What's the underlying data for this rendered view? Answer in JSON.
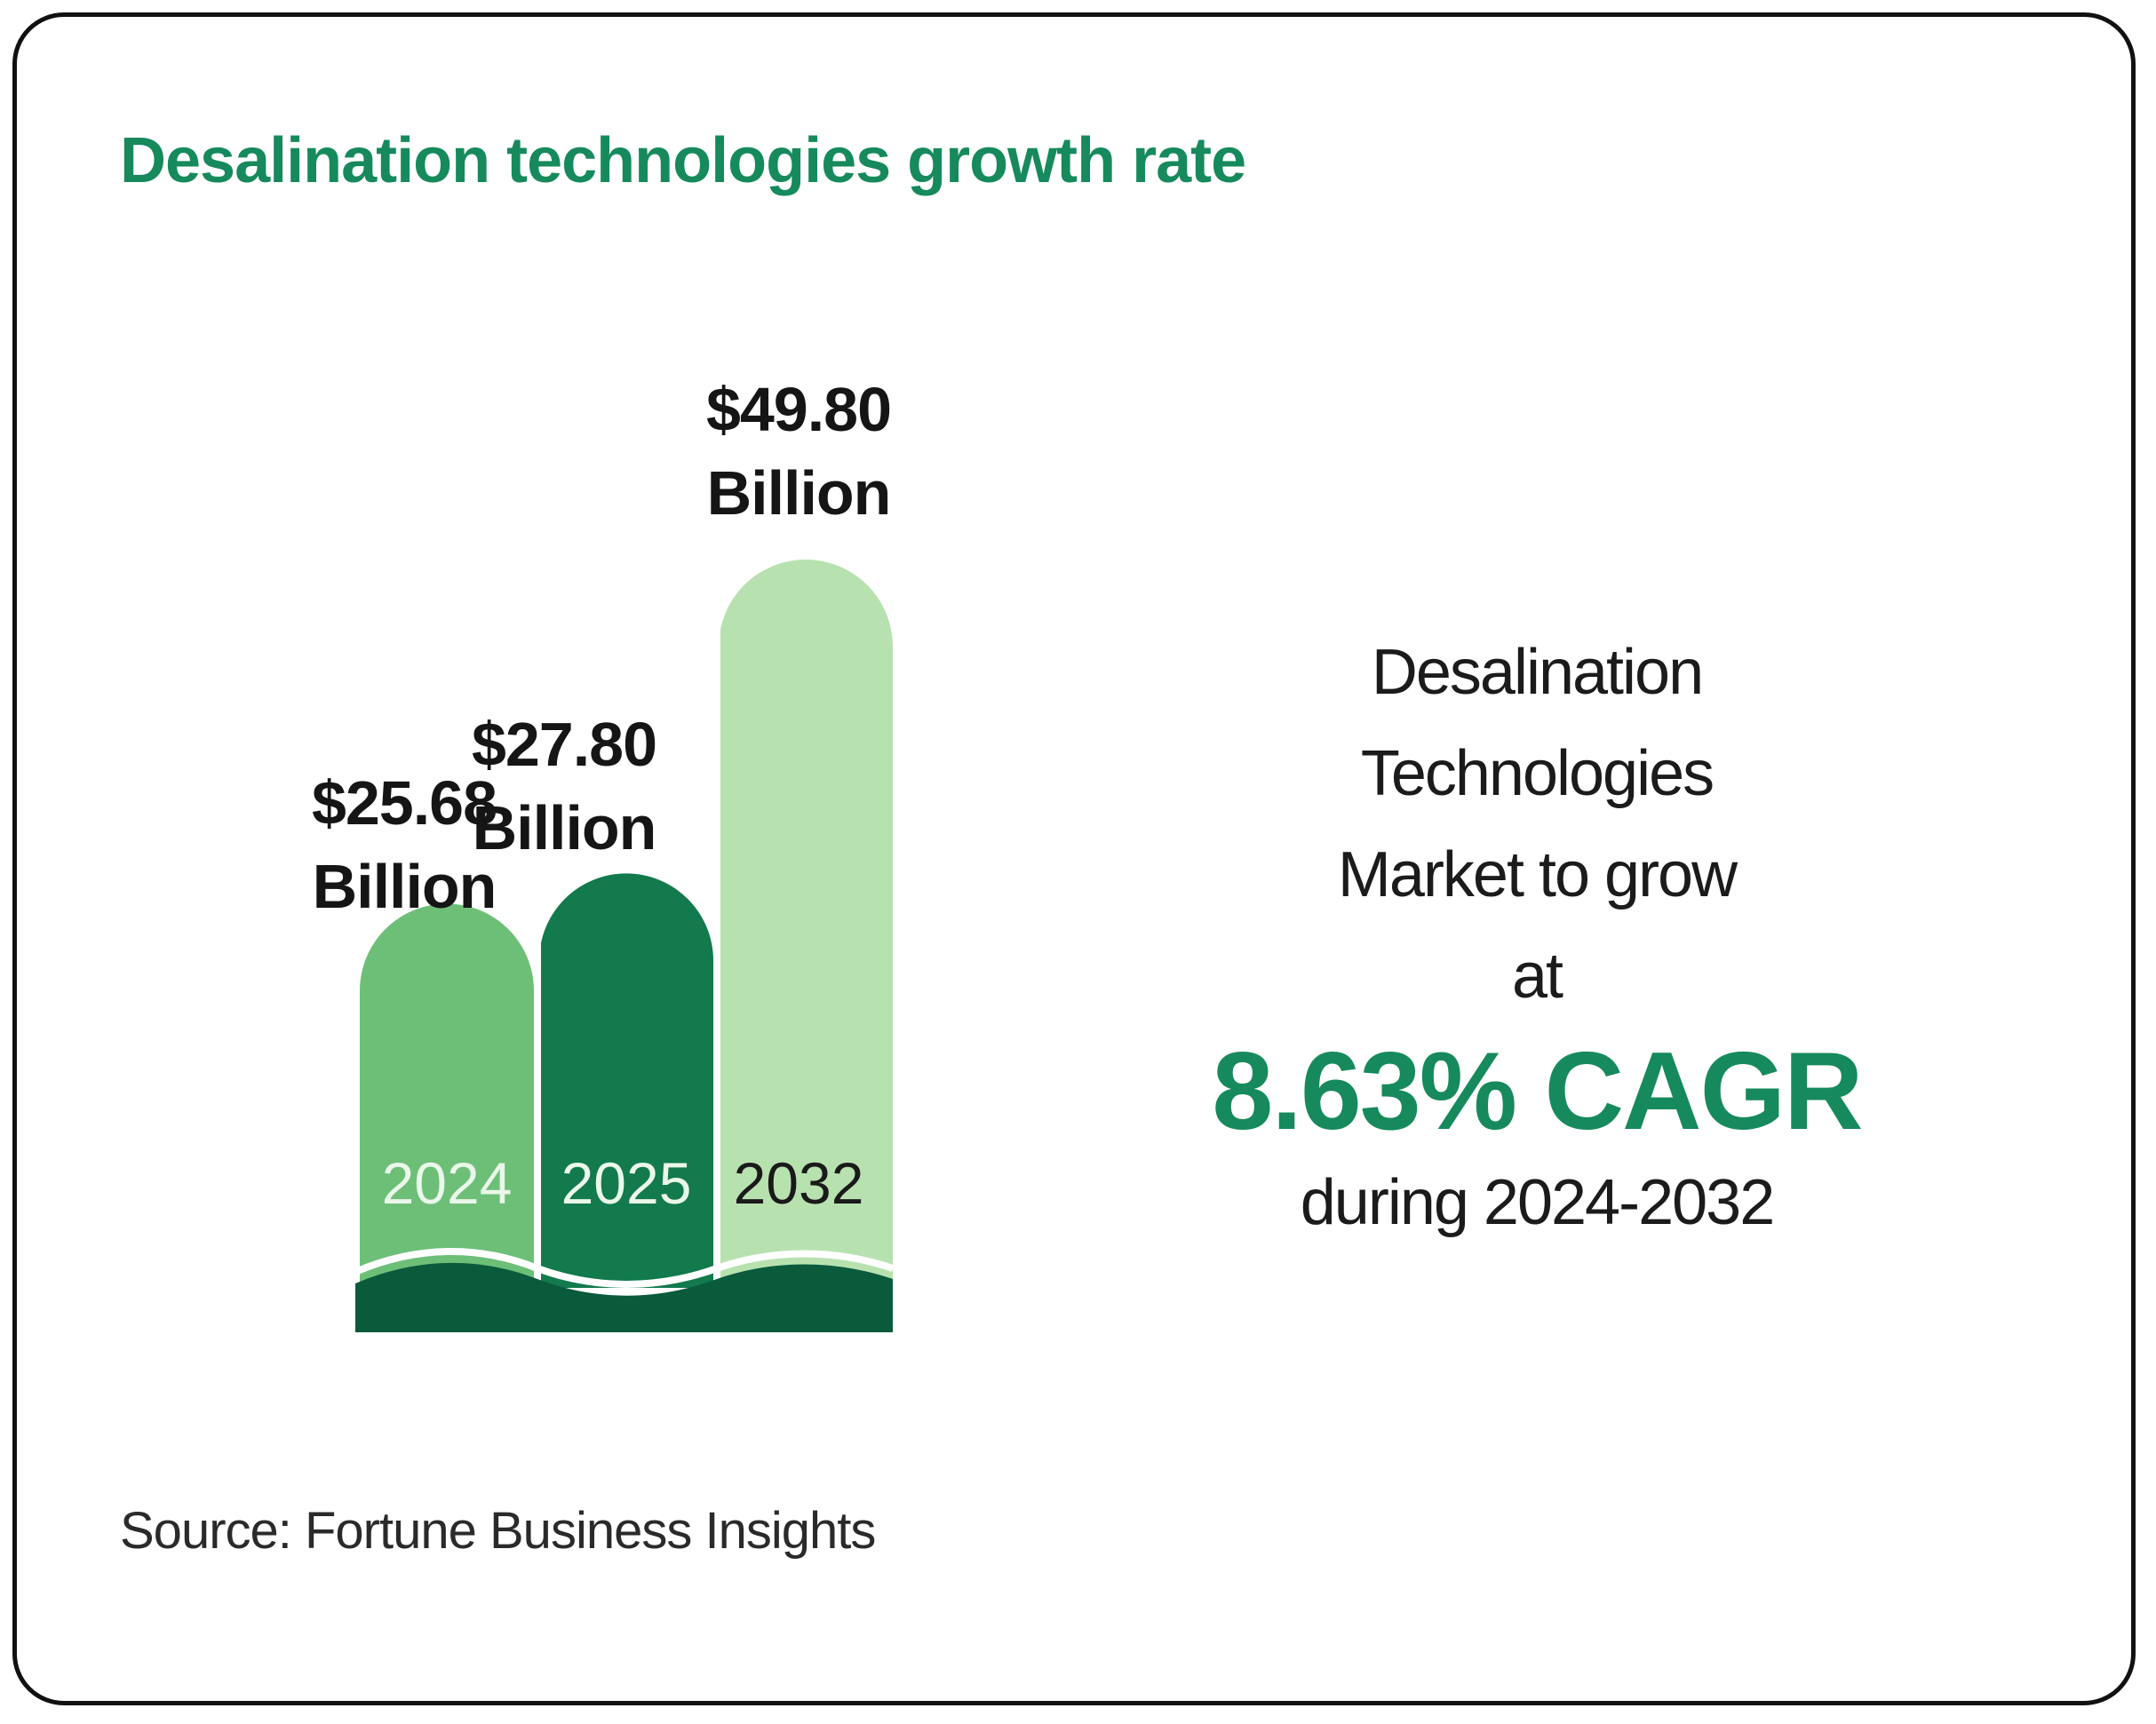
{
  "title": "Desalination technologies growth rate",
  "chart_data": {
    "type": "bar",
    "title": "Desalination technologies growth rate",
    "categories": [
      "2024",
      "2025",
      "2032"
    ],
    "values": [
      25.68,
      27.8,
      49.8
    ],
    "units": "Billion USD",
    "value_labels": [
      {
        "amount": "$25.68",
        "unit": "Billion"
      },
      {
        "amount": "$27.80",
        "unit": "Billion"
      },
      {
        "amount": "$49.80",
        "unit": "Billion"
      }
    ],
    "colors": [
      "#6dbf78",
      "#127a4d",
      "#b7e2b0"
    ],
    "label_colors": [
      "#eaf7ea",
      "#eaf7ea",
      "#1a1a1a"
    ],
    "base_color": "#0a5a3c"
  },
  "side_panel": {
    "lines": [
      "Desalination",
      "Technologies",
      "Market to grow",
      "at"
    ],
    "cagr": "8.63% CAGR",
    "period": "during 2024-2032"
  },
  "source": "Source: Fortune Business Insights"
}
